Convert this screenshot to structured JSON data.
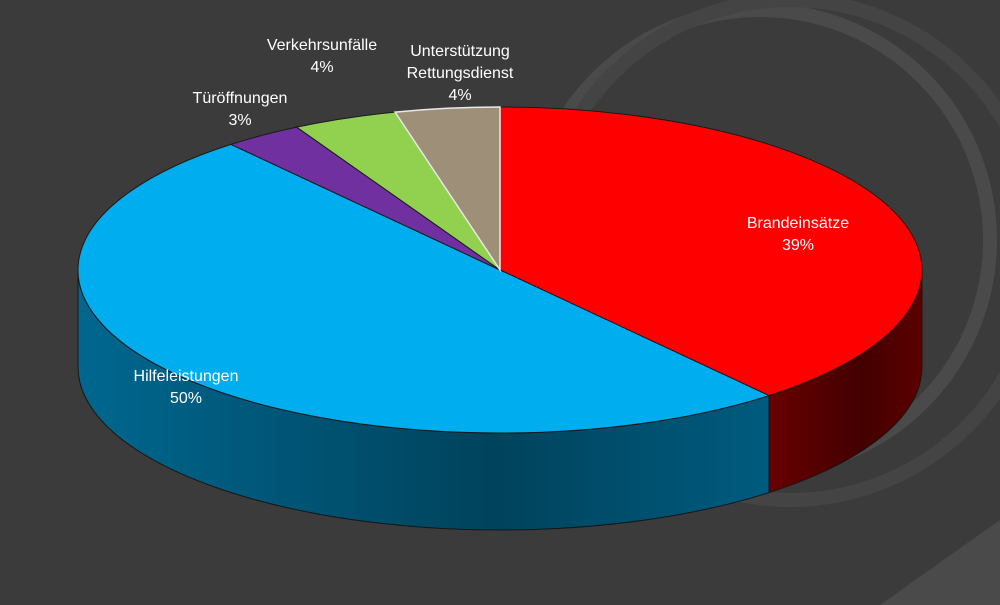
{
  "chart_data": {
    "type": "pie",
    "title": "",
    "style": "3d",
    "start_angle_deg": -90,
    "direction": "clockwise",
    "slices": [
      {
        "name": "Brandeinsätze",
        "pct_label": "39%",
        "value": 39,
        "color": "#ff0000",
        "side_color": "#7a0000"
      },
      {
        "name": "Hilfeleistungen",
        "pct_label": "50%",
        "value": 50,
        "color": "#00aeef",
        "side_color": "#0079a8"
      },
      {
        "name": "Türöffnungen",
        "pct_label": "3%",
        "value": 3,
        "color": "#7030a0",
        "side_color": "#3f1a5c"
      },
      {
        "name": "Verkehrsunfälle",
        "pct_label": "4%",
        "value": 4,
        "color": "#92d050",
        "side_color": "#557a2c"
      },
      {
        "name": "Unterstützung Rettungsdienst",
        "name_lines": [
          "Unterstützung",
          "Rettungsdienst"
        ],
        "pct_label": "4%",
        "value": 4,
        "color": "#9e9078",
        "side_color": "#5e5545"
      }
    ]
  },
  "theme": {
    "background": "#3b3b3b",
    "arc_decoration": "#555555",
    "slice_border": "#1a1a1a",
    "label_color": "#ffffff"
  }
}
